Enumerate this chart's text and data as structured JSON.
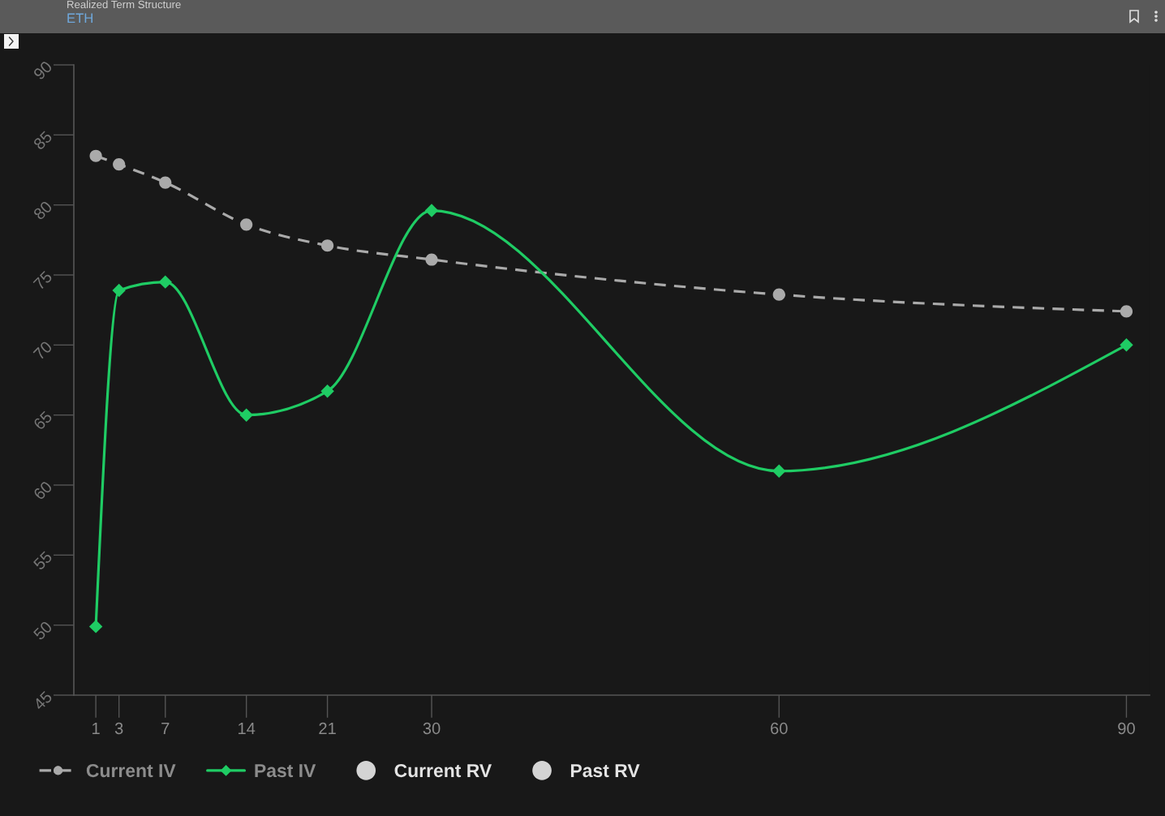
{
  "chart_data": {
    "type": "line",
    "title": "Realized Term Structure",
    "subtitle": "ETH",
    "x": [
      1,
      3,
      7,
      14,
      21,
      30,
      60,
      90
    ],
    "xlim": [
      -0.9,
      92
    ],
    "xticks": [
      1,
      3,
      7,
      14,
      21,
      30,
      60,
      90
    ],
    "ylim": [
      45,
      90
    ],
    "yticks": [
      45,
      50,
      55,
      60,
      65,
      70,
      75,
      80,
      85,
      90
    ],
    "grid": false,
    "legend": "bottom",
    "series": [
      {
        "name": "Current IV",
        "color": "#aaaaaa",
        "line_style": "dashed",
        "marker": "circle",
        "values": [
          83.5,
          82.9,
          81.6,
          78.6,
          77.1,
          76.1,
          73.6,
          72.4
        ]
      },
      {
        "name": "Past IV",
        "color": "#1fcc64",
        "line_style": "solid",
        "marker": "diamond",
        "values": [
          49.9,
          73.9,
          74.5,
          65.0,
          66.7,
          79.6,
          61.0,
          70.0
        ]
      },
      {
        "name": "Current RV",
        "type": "scatter",
        "color": "#d4d4d4",
        "marker": "circle",
        "values": [
          null,
          null,
          null,
          null,
          null,
          null,
          null,
          null
        ]
      },
      {
        "name": "Past RV",
        "type": "scatter",
        "color": "#d4d4d4",
        "marker": "circle",
        "values": [
          null,
          null,
          null,
          null,
          null,
          null,
          null,
          null
        ]
      }
    ]
  }
}
